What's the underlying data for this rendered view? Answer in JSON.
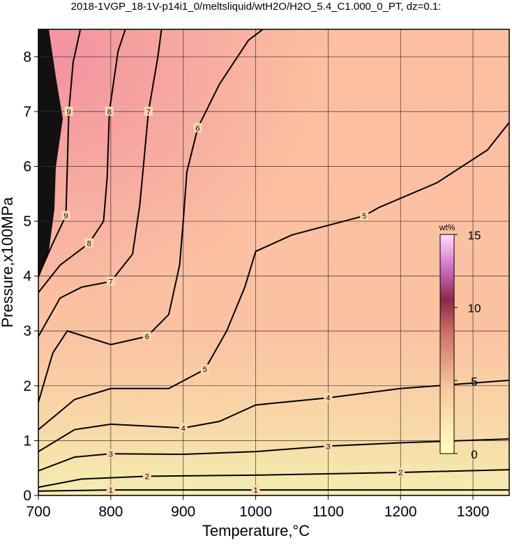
{
  "chart_data": {
    "type": "contour",
    "title": "2018-1VGP_18-1V-p14i1_0/meltsliquid/wtH2O/H2O_5.4_C1.000_0_PT, dz=0.1:",
    "x_label": "Temperature,°C",
    "y_label": "Pressure,x100MPa",
    "xlim": [
      700,
      1350
    ],
    "ylim": [
      0,
      8.5
    ],
    "xticks": [
      700,
      800,
      900,
      1000,
      1100,
      1200,
      1300
    ],
    "yticks": [
      0,
      1,
      2,
      3,
      4,
      5,
      6,
      7,
      8
    ],
    "grid": true,
    "colorbar": {
      "label": "wt%",
      "lim": [
        0,
        15
      ],
      "ticks": [
        0,
        5,
        10,
        15
      ]
    },
    "contours": [
      {
        "level": 1,
        "x": [
          700,
          800,
          1000,
          1350
        ],
        "y": [
          0.08,
          0.1,
          0.1,
          0.1
        ]
      },
      {
        "level": 2,
        "x": [
          700,
          760,
          850,
          1000,
          1200,
          1350
        ],
        "y": [
          0.15,
          0.3,
          0.35,
          0.37,
          0.42,
          0.47
        ]
      },
      {
        "level": 3,
        "x": [
          700,
          750,
          800,
          900,
          1000,
          1100,
          1200,
          1350
        ],
        "y": [
          0.45,
          0.7,
          0.76,
          0.75,
          0.8,
          0.9,
          0.96,
          1.03
        ]
      },
      {
        "level": 4,
        "x": [
          700,
          750,
          800,
          900,
          950,
          1000,
          1100,
          1200,
          1350
        ],
        "y": [
          0.8,
          1.2,
          1.3,
          1.23,
          1.35,
          1.65,
          1.78,
          1.95,
          2.1
        ]
      },
      {
        "level": 5,
        "x": [
          700,
          750,
          800,
          880,
          930,
          960,
          985,
          1000,
          1050,
          1150,
          1170,
          1250,
          1320,
          1350
        ],
        "y": [
          1.2,
          1.75,
          1.95,
          1.95,
          2.3,
          3.0,
          3.8,
          4.45,
          4.75,
          5.1,
          5.25,
          5.7,
          6.3,
          6.8
        ]
      },
      {
        "level": 6,
        "x": [
          700,
          720,
          740,
          800,
          850,
          880,
          895,
          900,
          905,
          920,
          950,
          990,
          1010
        ],
        "y": [
          1.7,
          2.6,
          3.0,
          2.75,
          2.9,
          3.3,
          4.2,
          5.0,
          5.9,
          6.7,
          7.5,
          8.3,
          8.5
        ]
      },
      {
        "level": 7,
        "x": [
          700,
          730,
          760,
          800,
          830,
          840,
          845,
          852,
          865,
          870
        ],
        "y": [
          2.9,
          3.6,
          3.8,
          3.9,
          4.4,
          5.3,
          6.0,
          7.0,
          8.0,
          8.5
        ]
      },
      {
        "level": 8,
        "x": [
          700,
          730,
          770,
          790,
          795,
          798,
          810,
          820
        ],
        "y": [
          3.7,
          4.2,
          4.6,
          5.0,
          5.8,
          7.0,
          8.1,
          8.5
        ]
      },
      {
        "level": 9,
        "x": [
          700,
          720,
          738,
          740,
          742,
          748,
          758
        ],
        "y": [
          4.0,
          4.6,
          5.1,
          6.0,
          7.0,
          7.9,
          8.5
        ]
      }
    ]
  }
}
